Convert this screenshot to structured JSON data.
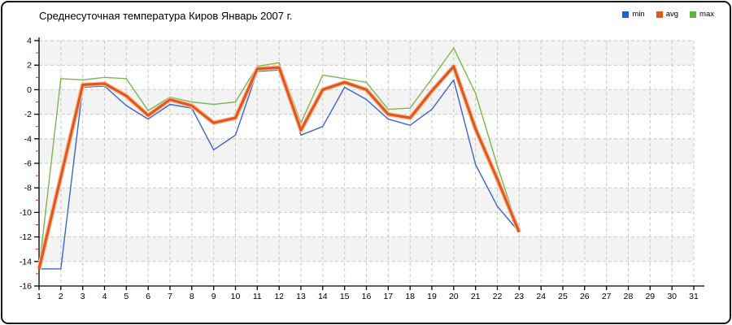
{
  "frame": {
    "border_color": "#181818",
    "background": "#ffffff"
  },
  "title": "Среднесуточная температура Киров  Январь 2007 г.",
  "legend": [
    {
      "label": "min",
      "color": "#2e59d8"
    },
    {
      "label": "avg",
      "color": "#e2571f"
    },
    {
      "label": "max",
      "color": "#64b43a"
    }
  ],
  "chart_data": {
    "type": "line",
    "title": "Среднесуточная температура Киров  Январь 2007 г.",
    "xlabel": "",
    "ylabel": "",
    "xlim": [
      1,
      31
    ],
    "ylim": [
      -16,
      4
    ],
    "y_tick_step": 2,
    "grid": true,
    "legend_position": "top-right",
    "x_ticks": [
      1,
      2,
      3,
      4,
      5,
      6,
      7,
      8,
      9,
      10,
      11,
      12,
      13,
      14,
      15,
      16,
      17,
      18,
      19,
      20,
      21,
      22,
      23,
      24,
      25,
      26,
      27,
      28,
      29,
      30,
      31
    ],
    "y_ticks": [
      4,
      2,
      0,
      -2,
      -4,
      -6,
      -8,
      -10,
      -12,
      -14,
      -16
    ],
    "x": [
      1,
      2,
      3,
      4,
      5,
      6,
      7,
      8,
      9,
      10,
      11,
      12,
      13,
      14,
      15,
      16,
      17,
      18,
      19,
      20,
      21,
      22,
      23
    ],
    "series": [
      {
        "name": "min",
        "color": "#3a64d2",
        "width": 1.4,
        "values": [
          -14.6,
          -14.6,
          0.2,
          0.3,
          -1.3,
          -2.4,
          -1.2,
          -1.5,
          -4.9,
          -3.7,
          1.5,
          1.6,
          -3.7,
          -3.0,
          0.2,
          -0.8,
          -2.4,
          -2.9,
          -1.6,
          0.8,
          -6.1,
          -9.5,
          -11.6
        ]
      },
      {
        "name": "avg",
        "color": "#e2571f",
        "halo": "#f7c49e",
        "width": 3.2,
        "values": [
          -14.6,
          -7.1,
          0.4,
          0.5,
          -0.5,
          -2.1,
          -0.8,
          -1.3,
          -2.7,
          -2.3,
          1.7,
          1.8,
          -3.3,
          0.0,
          0.6,
          0.0,
          -2.0,
          -2.3,
          -0.1,
          1.9,
          -3.2,
          -7.3,
          -11.6
        ]
      },
      {
        "name": "max",
        "color": "#7ab84f",
        "width": 1.4,
        "values": [
          -14.6,
          0.9,
          0.8,
          1.0,
          0.9,
          -1.7,
          -0.6,
          -1.0,
          -1.2,
          -1.0,
          1.9,
          2.2,
          -2.7,
          1.2,
          0.9,
          0.6,
          -1.6,
          -1.5,
          0.9,
          3.4,
          -0.3,
          -6.2,
          -11.6
        ]
      }
    ],
    "band_colors": [
      "#f3f3f3",
      "#ffffff"
    ],
    "grid_color": "#c9c9c9",
    "axis_color": "#000000",
    "major_tick_color": "#000000",
    "minor_tick_color": "#d42a1e",
    "tick_label_color": "#000000"
  }
}
